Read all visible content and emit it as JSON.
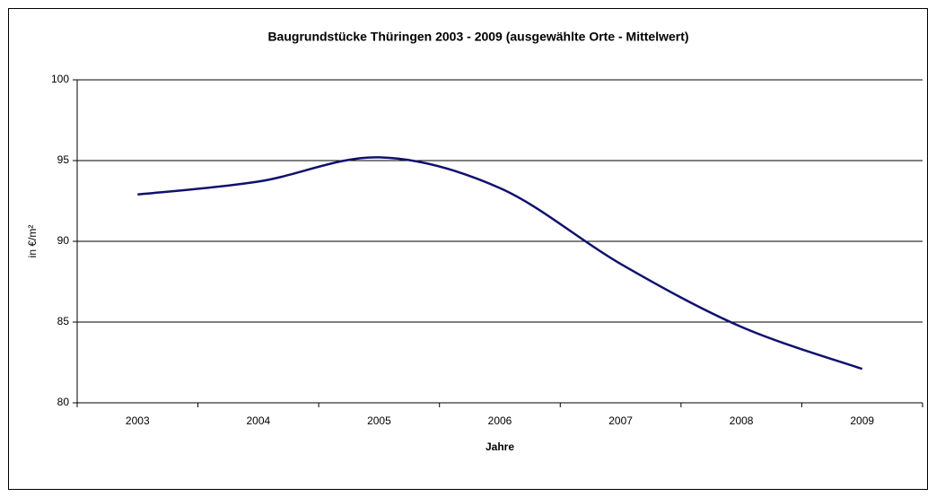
{
  "chart_data": {
    "type": "line",
    "title": "Baugrundstücke Thüringen 2003 - 2009 (ausgewählte Orte - Mittelwert)",
    "x_label": "Jahre",
    "y_label": "in €/m²",
    "categories": [
      "2003",
      "2004",
      "2005",
      "2006",
      "2007",
      "2008",
      "2009"
    ],
    "series": [
      {
        "name": "Mittelwert",
        "color": "#10106e",
        "values": [
          92.9,
          93.7,
          95.2,
          93.3,
          88.6,
          84.7,
          82.1
        ]
      }
    ],
    "ylim": [
      80,
      100
    ],
    "yticks": [
      80,
      85,
      90,
      95,
      100
    ],
    "grid": true
  }
}
